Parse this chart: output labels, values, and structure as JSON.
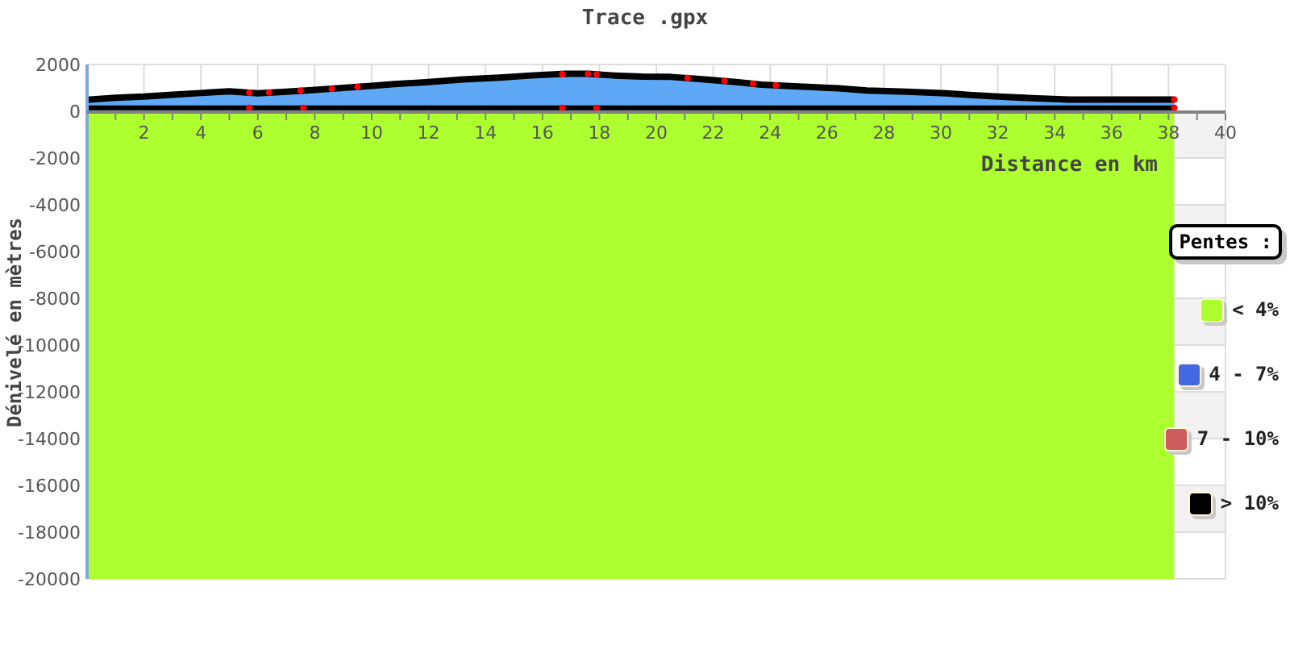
{
  "chart_data": {
    "type": "area",
    "title": "Trace .gpx",
    "xlabel": "Distance en km",
    "ylabel": "Dénivelé en mètres",
    "legend_title": "Pentes :",
    "legend": "right",
    "grid": true,
    "xlim": [
      0,
      40
    ],
    "xticks": [
      {
        "value": 1,
        "label": null
      },
      2,
      {
        "value": 3,
        "label": null
      },
      4,
      {
        "value": 5,
        "label": null
      },
      6,
      {
        "value": 7,
        "label": null
      },
      8,
      {
        "value": 9,
        "label": null
      },
      10,
      {
        "value": 11,
        "label": null
      },
      12,
      {
        "value": 13,
        "label": null
      },
      14,
      {
        "value": 15,
        "label": null
      },
      16,
      {
        "value": 17,
        "label": null
      },
      18,
      {
        "value": 19,
        "label": null
      },
      20,
      {
        "value": 21,
        "label": null
      },
      22,
      {
        "value": 23,
        "label": null
      },
      24,
      {
        "value": 25,
        "label": null
      },
      26,
      {
        "value": 27,
        "label": null
      },
      28,
      {
        "value": 29,
        "label": null
      },
      30,
      {
        "value": 31,
        "label": null
      },
      32,
      {
        "value": 33,
        "label": null
      },
      34,
      {
        "value": 35,
        "label": null
      },
      36,
      {
        "value": 37,
        "label": null
      },
      38,
      {
        "value": 39,
        "label": null
      },
      40
    ],
    "ylim": [
      -20000,
      2000
    ],
    "yticks": [
      -20000,
      -18000,
      -16000,
      -14000,
      -12000,
      -10000,
      -8000,
      -6000,
      -4000,
      -2000,
      0,
      2000
    ],
    "bands": [
      {
        "axis": "y",
        "from": -20000,
        "to": 0,
        "color": "#adff2f"
      }
    ],
    "x": [
      0,
      1,
      2,
      3,
      4,
      5,
      6,
      7,
      7.8,
      8.8,
      10,
      10.8,
      12,
      13.2,
      14.5,
      15.6,
      16.8,
      17.6,
      18.5,
      19.5,
      20.5,
      21.7,
      22.8,
      23.7,
      25,
      26.4,
      27.4,
      28.8,
      30.2,
      31,
      32,
      33.2,
      34.5,
      38.2
    ],
    "series": [
      {
        "color": "#5fa8f5",
        "values": [
          490,
          580,
          630,
          710,
          780,
          850,
          770,
          840,
          900,
          980,
          1090,
          1160,
          1250,
          1360,
          1440,
          1530,
          1600,
          1600,
          1530,
          1480,
          1470,
          1360,
          1250,
          1140,
          1060,
          980,
          890,
          840,
          770,
          700,
          630,
          560,
          500,
          500
        ]
      },
      {
        "type": "line",
        "color": "#000000",
        "x": [
          0,
          5.7,
          7.6,
          16.7,
          17.9,
          38.2
        ],
        "values": [
          150,
          150,
          150,
          150,
          150,
          150
        ]
      },
      {
        "name": "< 4%",
        "color": "#adff2f",
        "values": [
          null,
          null,
          null,
          null,
          null,
          null,
          null,
          null,
          null,
          null,
          null,
          null,
          null,
          null,
          null,
          null,
          null,
          null,
          null,
          null,
          null,
          null,
          null,
          null,
          null,
          null,
          null,
          null,
          null,
          null,
          null,
          null,
          null,
          null
        ]
      },
      {
        "name": "4 - 7%",
        "color": "#4169e1",
        "values": [
          null,
          null,
          null,
          null,
          null,
          null,
          null,
          null,
          null,
          null,
          null,
          null,
          null,
          null,
          null,
          null,
          null,
          null,
          null,
          null,
          null,
          null,
          null,
          null,
          null,
          null,
          null,
          null,
          null,
          null,
          null,
          null,
          null,
          null
        ]
      },
      {
        "name": "7 - 10%",
        "color": "#cd5c5c",
        "values": [
          null,
          null,
          null,
          null,
          null,
          null,
          null,
          null,
          null,
          null,
          null,
          null,
          null,
          null,
          null,
          null,
          null,
          null,
          null,
          null,
          null,
          null,
          null,
          null,
          null,
          null,
          null,
          null,
          null,
          null,
          null,
          null,
          null,
          null
        ]
      },
      {
        "name": "> 10%",
        "color": "#000000",
        "values": [
          null,
          null,
          null,
          null,
          null,
          null,
          null,
          null,
          null,
          null,
          null,
          null,
          null,
          null,
          null,
          null,
          null,
          null,
          null,
          null,
          null,
          null,
          null,
          null,
          null,
          null,
          null,
          null,
          null,
          null,
          null,
          null,
          null,
          null
        ]
      },
      {
        "type": "scatter",
        "color": "#ff0000",
        "marker": "circle",
        "x": [
          5.7,
          6.4,
          7.5,
          8.6,
          9.5,
          16.7,
          17.6,
          17.9,
          21.1,
          22.4,
          23.4,
          24.2,
          38.2,
          5.7,
          7.6,
          16.7,
          17.9,
          38.2
        ],
        "values": [
          790,
          800,
          880,
          960,
          1040,
          1590,
          1600,
          1580,
          1420,
          1290,
          1180,
          1110,
          500,
          150,
          150,
          150,
          150,
          150
        ]
      }
    ]
  }
}
